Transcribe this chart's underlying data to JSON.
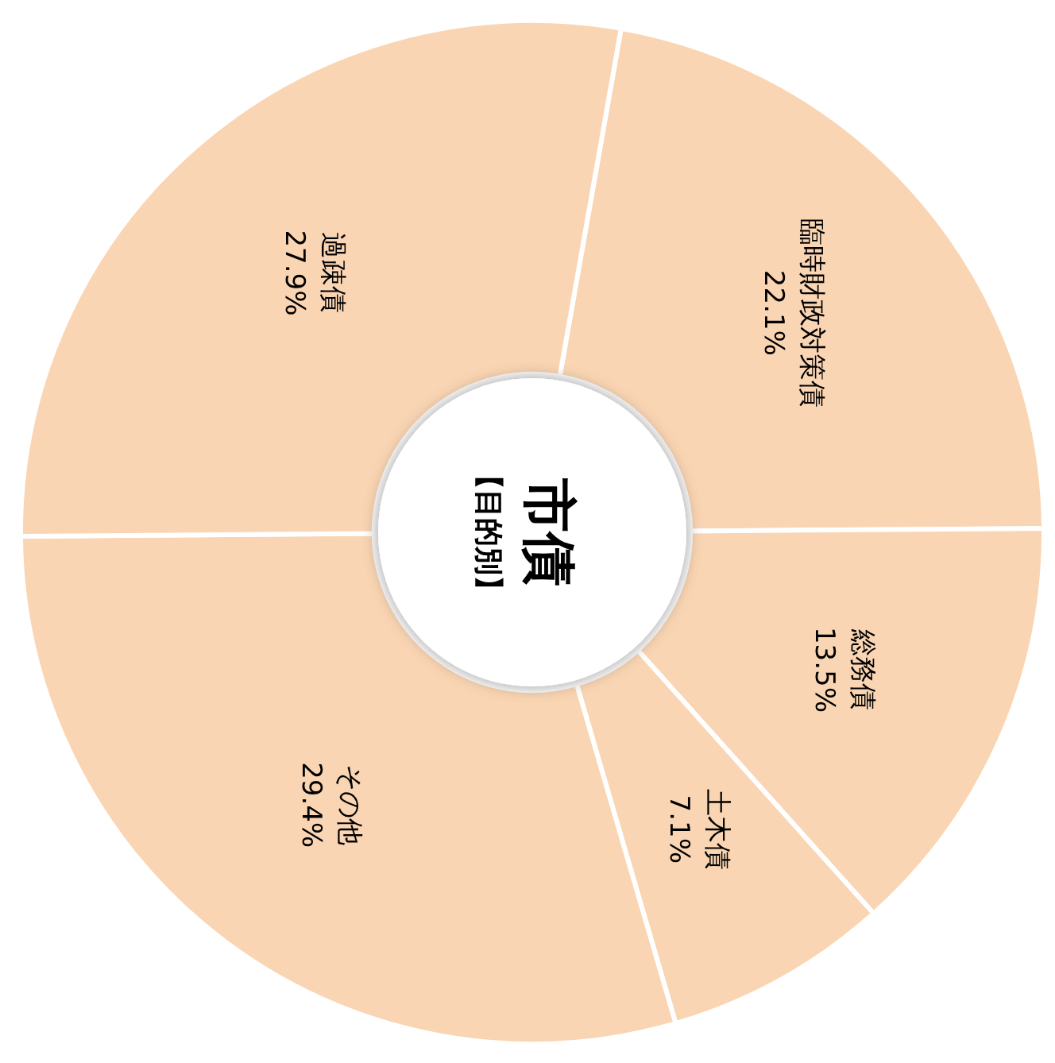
{
  "chart_data": {
    "type": "donut",
    "title": "市債",
    "subtitle": "【目的別】",
    "categories": [
      "臨時財政対策債",
      "総務債",
      "土木債",
      "その他",
      "過疎債"
    ],
    "values": [
      22.1,
      13.5,
      7.1,
      29.4,
      27.9
    ],
    "value_labels": [
      "22.1%",
      "13.5%",
      "7.1%",
      "29.4%",
      "27.9%"
    ],
    "colors": [
      "#fad5b3",
      "#fad5b3",
      "#fad5b3",
      "#fad5b3",
      "#fad5b3"
    ],
    "legend": false
  }
}
